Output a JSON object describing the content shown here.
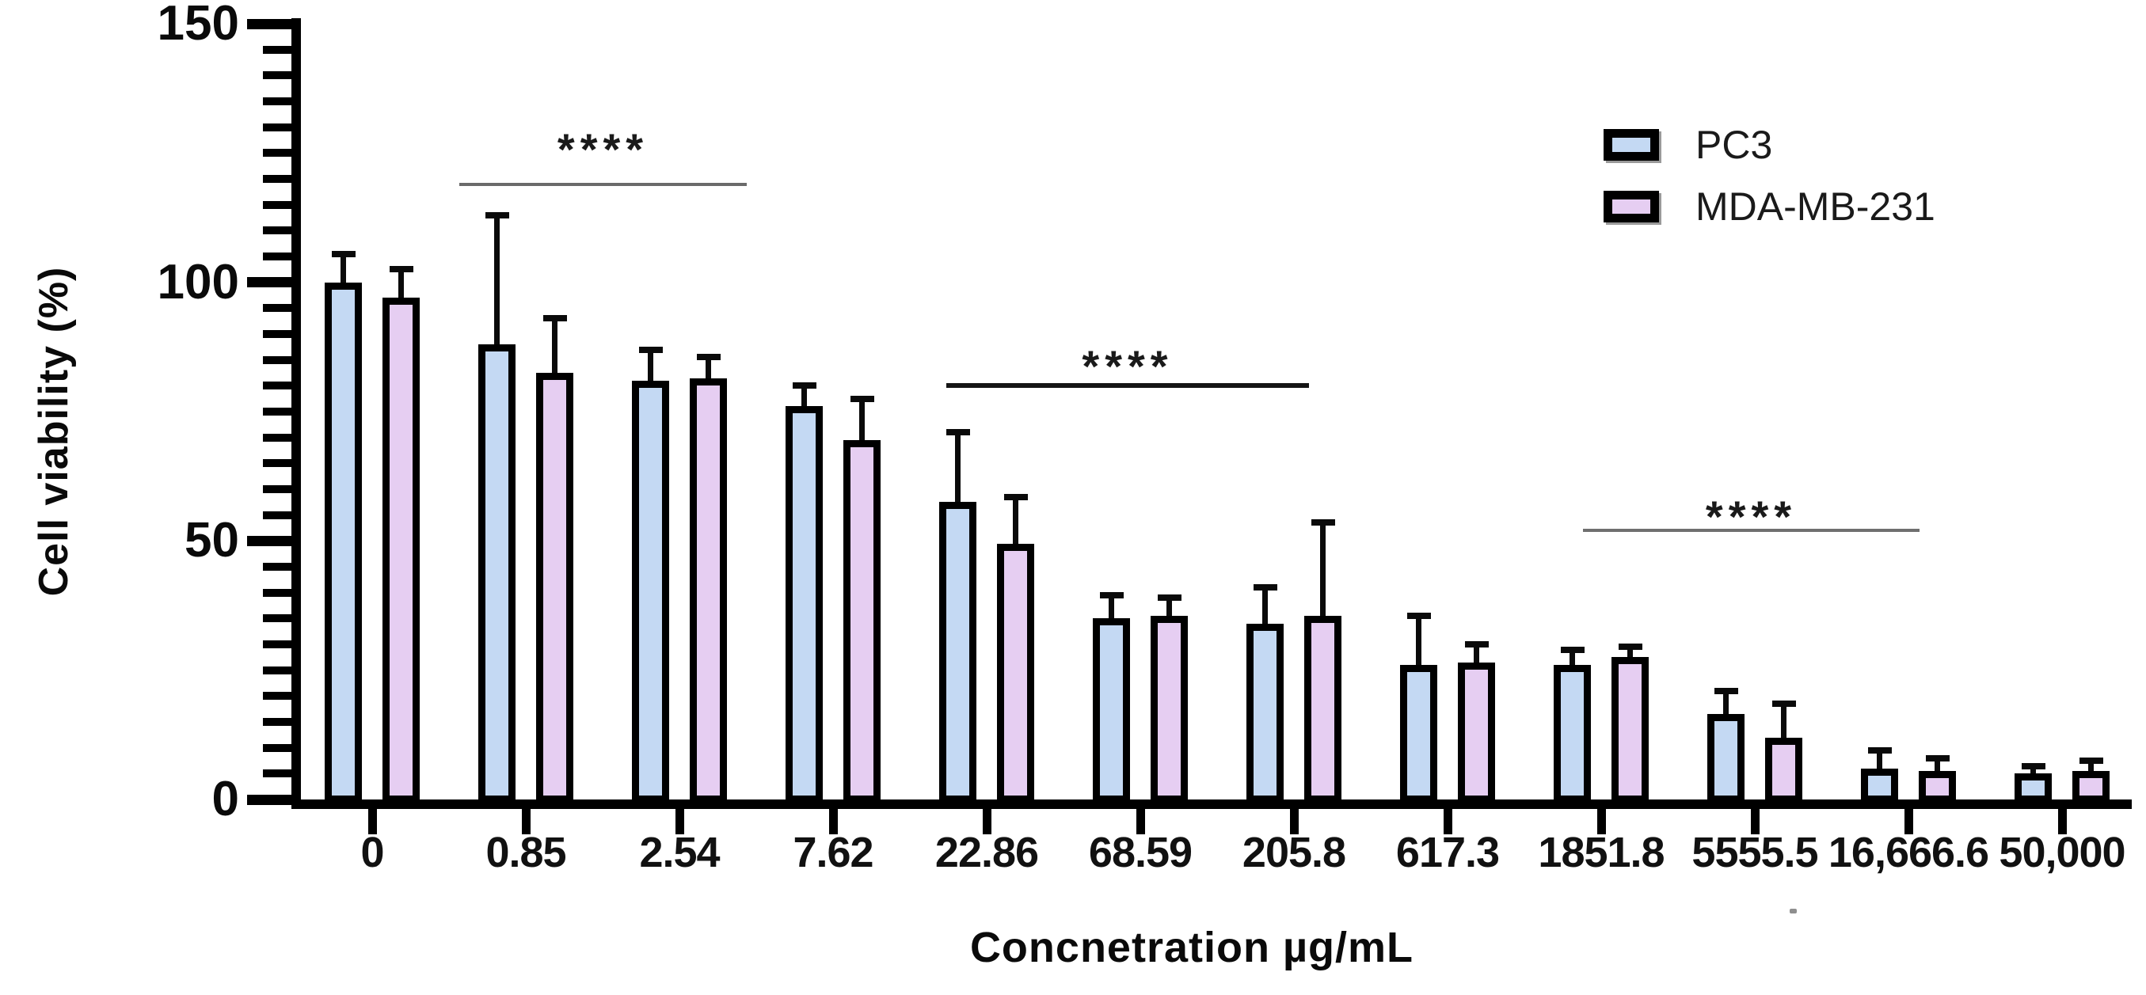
{
  "chart_data": {
    "type": "bar",
    "title": "",
    "xlabel": "Concnetration µg/mL",
    "ylabel": "Cell viability (%)",
    "categories": [
      "0",
      "0.85",
      "2.54",
      "7.62",
      "22.86",
      "68.59",
      "205.8",
      "617.3",
      "1851.8",
      "5555.5",
      "16,666.6",
      "50,000"
    ],
    "y_axis": {
      "min": 0,
      "max": 150,
      "major_ticks": [
        0,
        50,
        100,
        150
      ],
      "major_tick_labels": [
        "0",
        "50",
        "100",
        "150"
      ],
      "minor_tick_step": 5,
      "grid": "off"
    },
    "legend_position": "top-right",
    "series": [
      {
        "name": "PC3",
        "color": "#C4D9F3",
        "values": [
          100,
          88,
          81,
          76,
          57.5,
          35,
          34,
          26,
          26,
          16.5,
          6,
          5
        ],
        "error_top": [
          105.5,
          113,
          87,
          80,
          71,
          39.5,
          41,
          35.5,
          29,
          21,
          9.5,
          6.5
        ]
      },
      {
        "name": "MDA-MB-231",
        "color": "#E6CEF2",
        "values": [
          97,
          82.5,
          81.5,
          69.5,
          49.5,
          35.5,
          35.5,
          26.5,
          27.5,
          12,
          5.5,
          5.5
        ],
        "error_top": [
          102.5,
          93,
          85.5,
          77.5,
          58.5,
          39,
          53.5,
          30,
          29.5,
          18.5,
          8,
          7.5
        ]
      }
    ],
    "significance": [
      {
        "stars": "****",
        "from_group": 1,
        "to_group": 2,
        "x1": 580,
        "x2": 943,
        "line_value": 119,
        "stars_value": 127.5,
        "color": "#6a6a6a",
        "thickness": 4
      },
      {
        "stars": "****",
        "from_group": 4,
        "to_group": 6,
        "x1": 1195,
        "x2": 1653,
        "line_value": 80,
        "stars_value": 85.5,
        "color": "#151515",
        "thickness": 6
      },
      {
        "stars": "****",
        "from_group": 8,
        "to_group": 10,
        "x1": 1999,
        "x2": 2424,
        "line_value": 52,
        "stars_value": 56.5,
        "color": "#6f6f6f",
        "thickness": 4
      }
    ]
  }
}
